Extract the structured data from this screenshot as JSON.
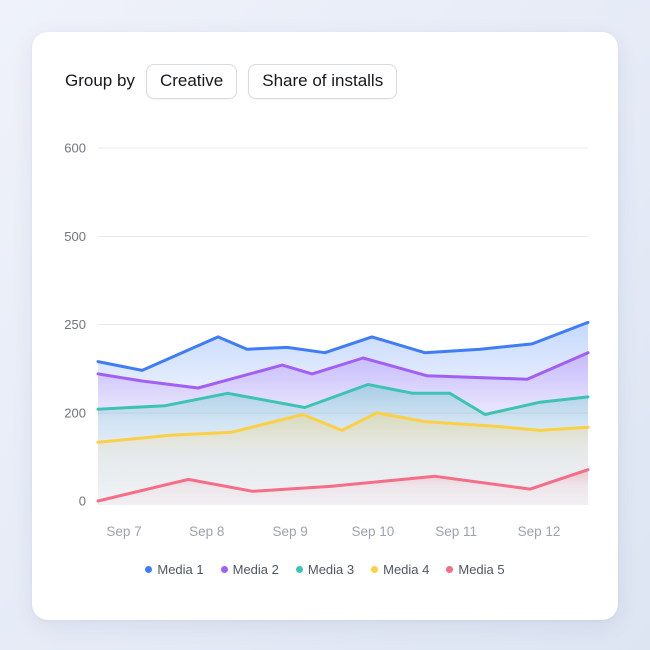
{
  "toolbar": {
    "group_by_label": "Group by",
    "buttons": [
      {
        "label": "Creative"
      },
      {
        "label": "Share of installs"
      }
    ]
  },
  "chart_data": {
    "type": "area",
    "title": "",
    "grid": true,
    "legend_position": "bottom",
    "x_axis": {
      "categories": [
        "Sep 7",
        "Sep 8",
        "Sep 9",
        "Sep 10",
        "Sep 11",
        "Sep 12"
      ],
      "positions": [
        0.053,
        0.222,
        0.392,
        0.561,
        0.731,
        0.9
      ]
    },
    "y_axis": {
      "tick_labels": [
        "0",
        "200",
        "250",
        "500",
        "600"
      ],
      "tick_values": [
        0,
        200,
        250,
        500,
        600
      ],
      "note": "ticks are evenly spaced on screen (nonlinear scale)"
    },
    "series": [
      {
        "name": "Media 1",
        "color": "#3f7df6",
        "points": [
          [
            0,
            229
          ],
          [
            0.09,
            224
          ],
          [
            0.245,
            243
          ],
          [
            0.304,
            236
          ],
          [
            0.386,
            237
          ],
          [
            0.463,
            234
          ],
          [
            0.559,
            243
          ],
          [
            0.667,
            234
          ],
          [
            0.78,
            236
          ],
          [
            0.886,
            239
          ],
          [
            1,
            256
          ]
        ]
      },
      {
        "name": "Media 2",
        "color": "#a25ff5",
        "points": [
          [
            0,
            222
          ],
          [
            0.09,
            218
          ],
          [
            0.204,
            214
          ],
          [
            0.376,
            227
          ],
          [
            0.437,
            222
          ],
          [
            0.541,
            231
          ],
          [
            0.671,
            221
          ],
          [
            0.876,
            219
          ],
          [
            1,
            234
          ]
        ]
      },
      {
        "name": "Media 3",
        "color": "#3cc3b4",
        "points": [
          [
            0,
            202
          ],
          [
            0.137,
            204
          ],
          [
            0.265,
            211
          ],
          [
            0.422,
            203
          ],
          [
            0.551,
            216
          ],
          [
            0.643,
            211
          ],
          [
            0.718,
            211
          ],
          [
            0.79,
            196
          ],
          [
            0.902,
            206
          ],
          [
            1,
            209
          ]
        ]
      },
      {
        "name": "Media 4",
        "color": "#fcd044",
        "points": [
          [
            0,
            133
          ],
          [
            0.147,
            149
          ],
          [
            0.273,
            156
          ],
          [
            0.418,
            196
          ],
          [
            0.498,
            160
          ],
          [
            0.569,
            200
          ],
          [
            0.667,
            180
          ],
          [
            0.814,
            169
          ],
          [
            0.902,
            160
          ],
          [
            1,
            167
          ]
        ]
      },
      {
        "name": "Media 5",
        "color": "#f56d86",
        "points": [
          [
            0,
            0
          ],
          [
            0.184,
            49
          ],
          [
            0.316,
            22
          ],
          [
            0.474,
            33
          ],
          [
            0.688,
            56
          ],
          [
            0.882,
            27
          ],
          [
            1,
            71
          ]
        ]
      }
    ],
    "style": {
      "axis_label_color": "#6e7680",
      "x_label_color": "#9ba3ae",
      "gridline_color": "#e9ebef",
      "legend_text_color": "#4e5763"
    }
  }
}
